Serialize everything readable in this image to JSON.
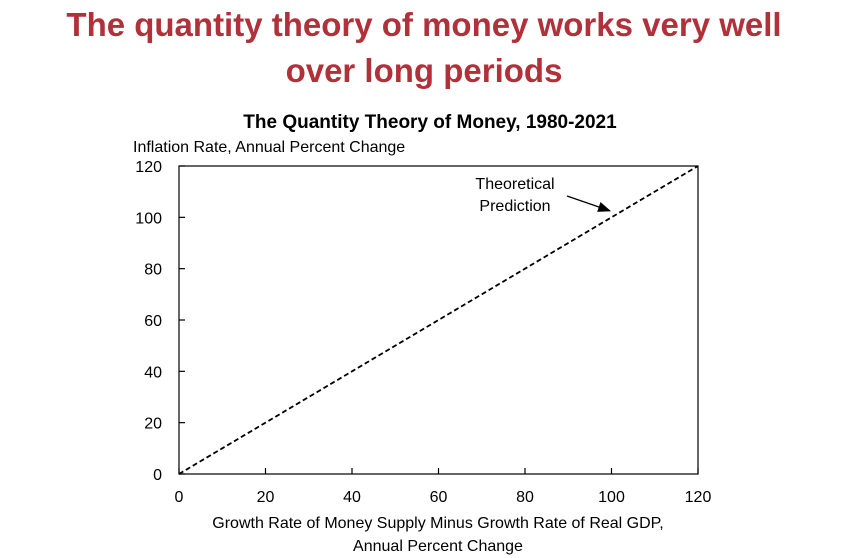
{
  "slide": {
    "title_line1": "The quantity theory of money works very well",
    "title_line2": "over long periods"
  },
  "chart_data": {
    "type": "line",
    "title": "The Quantity  Theory of Money,  1980-2021",
    "ylabel": "Inflation Rate, Annual Percent Change",
    "xlabel_line1": "Growth Rate of Money Supply Minus Growth Rate of Real GDP,",
    "xlabel_line2": "Annual Percent Change",
    "xlim": [
      0,
      120
    ],
    "ylim": [
      0,
      120
    ],
    "xticks": [
      0,
      20,
      40,
      60,
      80,
      100,
      120
    ],
    "yticks": [
      0,
      20,
      40,
      60,
      80,
      100,
      120
    ],
    "grid": false,
    "series": [
      {
        "x": [
          0,
          120
        ],
        "y": [
          0,
          120
        ],
        "style": "dashed",
        "color": "#000000"
      }
    ],
    "annotation": {
      "line1": "Theoretical",
      "line2": "Prediction",
      "points_to": {
        "x": 101,
        "y": 101
      }
    }
  }
}
